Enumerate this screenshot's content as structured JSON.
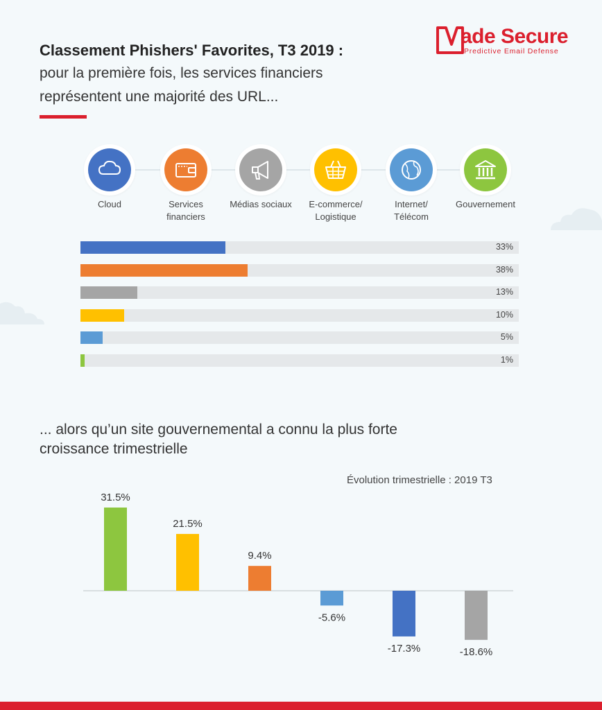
{
  "header": {
    "title": "Classement Phishers' Favorites, T3 2019  :",
    "subtitle_line1": "pour la première fois, les services financiers",
    "subtitle_line2": "représentent une majorité des URL...",
    "accent_color": "#db1f2d"
  },
  "logo": {
    "name": "Vade Secure",
    "name_rest": "ade Secure",
    "tagline": "Predictive Email Defense",
    "color": "#db1f2d"
  },
  "categories": [
    {
      "name": "Cloud",
      "line1": "Cloud",
      "line2": "",
      "icon": "cloud-icon",
      "color": "#4472c4"
    },
    {
      "name": "Services financiers",
      "line1": "Services",
      "line2": "financiers",
      "icon": "wallet-icon",
      "color": "#ed7d31"
    },
    {
      "name": "Médias sociaux",
      "line1": "Médias sociaux",
      "line2": "",
      "icon": "megaphone-icon",
      "color": "#a5a5a5"
    },
    {
      "name": "E-commerce/ Logistique",
      "line1": "E-commerce/",
      "line2": "Logistique",
      "icon": "basket-icon",
      "color": "#ffc000"
    },
    {
      "name": "Internet/ Télécom",
      "line1": "Internet/",
      "line2": "Télécom",
      "icon": "globe-icon",
      "color": "#5b9bd5"
    },
    {
      "name": "Gouvernement",
      "line1": "Gouvernement",
      "line2": "",
      "icon": "bank-icon",
      "color": "#8dc63f"
    }
  ],
  "section2": {
    "line1": "... alors qu’un site gouvernemental a connu la plus forte",
    "line2": "croissance trimestrielle",
    "chart_caption": "Évolution trimestrielle : 2019 T3"
  },
  "chart_data": [
    {
      "type": "bar",
      "orientation": "horizontal",
      "categories": [
        "Cloud",
        "Services financiers",
        "Médias sociaux",
        "E-commerce/ Logistique",
        "Internet/ Télécom",
        "Gouvernement"
      ],
      "values": [
        33,
        38,
        13,
        10,
        5,
        1
      ],
      "labels": [
        "33%",
        "38%",
        "13%",
        "10%",
        "5%",
        "1%"
      ],
      "colors": [
        "#4472c4",
        "#ed7d31",
        "#a5a5a5",
        "#ffc000",
        "#5b9bd5",
        "#8dc63f"
      ],
      "xlim": [
        0,
        100
      ],
      "title": "",
      "xlabel": "",
      "ylabel": ""
    },
    {
      "type": "bar",
      "orientation": "vertical",
      "title": "Évolution trimestrielle : 2019 T3",
      "categories": [
        "Gouvernement",
        "E-commerce/ Logistique",
        "Services financiers",
        "Internet/ Télécom",
        "Cloud",
        "Médias sociaux"
      ],
      "values": [
        31.5,
        21.5,
        9.4,
        -5.6,
        -17.3,
        -18.6
      ],
      "labels": [
        "31.5%",
        "21.5%",
        "9.4%",
        "-5.6%",
        "-17.3%",
        "-18.6%"
      ],
      "colors": [
        "#8dc63f",
        "#ffc000",
        "#ed7d31",
        "#5b9bd5",
        "#4472c4",
        "#a5a5a5"
      ],
      "ylim": [
        -20,
        35
      ],
      "xlabel": "",
      "ylabel": ""
    }
  ]
}
